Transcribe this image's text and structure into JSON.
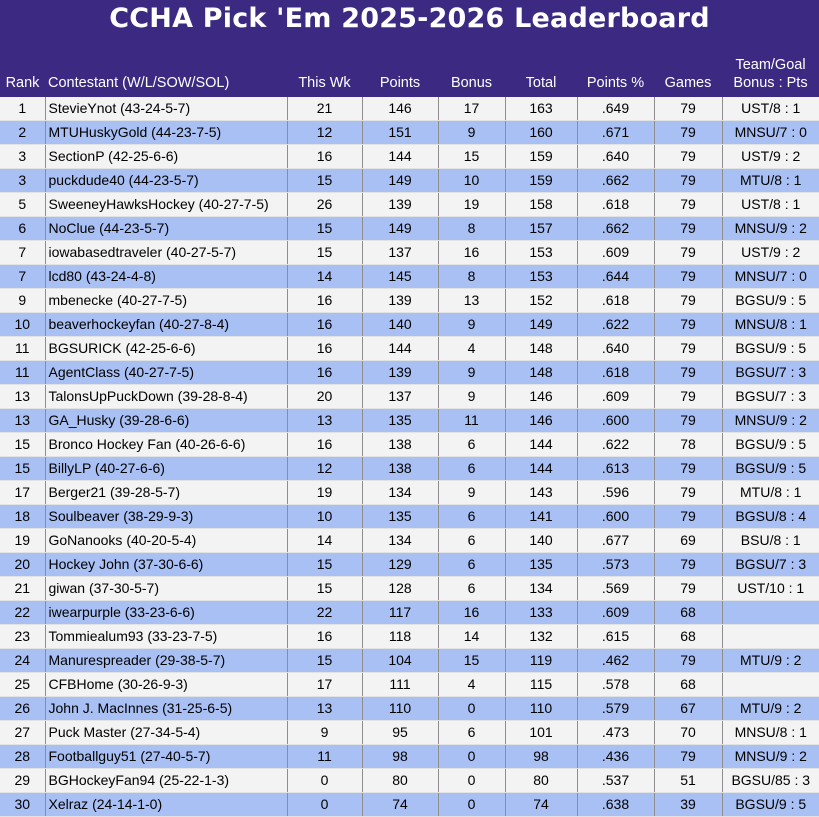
{
  "title": "CCHA Pick 'Em 2025-2026 Leaderboard",
  "headers": {
    "rank": "Rank",
    "contestant": "Contestant (W/L/SOW/SOL)",
    "this_wk": "This Wk",
    "points": "Points",
    "bonus": "Bonus",
    "total": "Total",
    "points_pct": "Points %",
    "games": "Games",
    "team_goal_1": "Team/Goal",
    "team_goal_2": "Bonus : Pts"
  },
  "rows": [
    {
      "rank": "1",
      "contestant": "StevieYnot (43-24-5-7)",
      "this_wk": "21",
      "points": "146",
      "bonus": "17",
      "total": "163",
      "pct": ".649",
      "games": "79",
      "tg": "UST/8 : 1"
    },
    {
      "rank": "2",
      "contestant": "MTUHuskyGold (44-23-7-5)",
      "this_wk": "12",
      "points": "151",
      "bonus": "9",
      "total": "160",
      "pct": ".671",
      "games": "79",
      "tg": "MNSU/7 : 0"
    },
    {
      "rank": "3",
      "contestant": "SectionP (42-25-6-6)",
      "this_wk": "16",
      "points": "144",
      "bonus": "15",
      "total": "159",
      "pct": ".640",
      "games": "79",
      "tg": "UST/9 : 2"
    },
    {
      "rank": "3",
      "contestant": "puckdude40 (44-23-5-7)",
      "this_wk": "15",
      "points": "149",
      "bonus": "10",
      "total": "159",
      "pct": ".662",
      "games": "79",
      "tg": "MTU/8 : 1"
    },
    {
      "rank": "5",
      "contestant": "SweeneyHawksHockey (40-27-7-5)",
      "this_wk": "26",
      "points": "139",
      "bonus": "19",
      "total": "158",
      "pct": ".618",
      "games": "79",
      "tg": "UST/8 : 1"
    },
    {
      "rank": "6",
      "contestant": "NoClue (44-23-5-7)",
      "this_wk": "15",
      "points": "149",
      "bonus": "8",
      "total": "157",
      "pct": ".662",
      "games": "79",
      "tg": "MNSU/9 : 2"
    },
    {
      "rank": "7",
      "contestant": "iowabasedtraveler (40-27-5-7)",
      "this_wk": "15",
      "points": "137",
      "bonus": "16",
      "total": "153",
      "pct": ".609",
      "games": "79",
      "tg": "UST/9 : 2"
    },
    {
      "rank": "7",
      "contestant": "lcd80 (43-24-4-8)",
      "this_wk": "14",
      "points": "145",
      "bonus": "8",
      "total": "153",
      "pct": ".644",
      "games": "79",
      "tg": "MNSU/7 : 0"
    },
    {
      "rank": "9",
      "contestant": "mbenecke (40-27-7-5)",
      "this_wk": "16",
      "points": "139",
      "bonus": "13",
      "total": "152",
      "pct": ".618",
      "games": "79",
      "tg": "BGSU/9 : 5"
    },
    {
      "rank": "10",
      "contestant": "beaverhockeyfan (40-27-8-4)",
      "this_wk": "16",
      "points": "140",
      "bonus": "9",
      "total": "149",
      "pct": ".622",
      "games": "79",
      "tg": "MNSU/8 : 1"
    },
    {
      "rank": "11",
      "contestant": "BGSURICK (42-25-6-6)",
      "this_wk": "16",
      "points": "144",
      "bonus": "4",
      "total": "148",
      "pct": ".640",
      "games": "79",
      "tg": "BGSU/9 : 5"
    },
    {
      "rank": "11",
      "contestant": "AgentClass (40-27-7-5)",
      "this_wk": "16",
      "points": "139",
      "bonus": "9",
      "total": "148",
      "pct": ".618",
      "games": "79",
      "tg": "BGSU/7 : 3"
    },
    {
      "rank": "13",
      "contestant": "TalonsUpPuckDown (39-28-8-4)",
      "this_wk": "20",
      "points": "137",
      "bonus": "9",
      "total": "146",
      "pct": ".609",
      "games": "79",
      "tg": "BGSU/7 : 3"
    },
    {
      "rank": "13",
      "contestant": "GA_Husky (39-28-6-6)",
      "this_wk": "13",
      "points": "135",
      "bonus": "11",
      "total": "146",
      "pct": ".600",
      "games": "79",
      "tg": "MNSU/9 : 2"
    },
    {
      "rank": "15",
      "contestant": "Bronco Hockey Fan (40-26-6-6)",
      "this_wk": "16",
      "points": "138",
      "bonus": "6",
      "total": "144",
      "pct": ".622",
      "games": "78",
      "tg": "BGSU/9 : 5"
    },
    {
      "rank": "15",
      "contestant": "BillyLP (40-27-6-6)",
      "this_wk": "12",
      "points": "138",
      "bonus": "6",
      "total": "144",
      "pct": ".613",
      "games": "79",
      "tg": "BGSU/9 : 5"
    },
    {
      "rank": "17",
      "contestant": "Berger21 (39-28-5-7)",
      "this_wk": "19",
      "points": "134",
      "bonus": "9",
      "total": "143",
      "pct": ".596",
      "games": "79",
      "tg": "MTU/8 : 1"
    },
    {
      "rank": "18",
      "contestant": "Soulbeaver (38-29-9-3)",
      "this_wk": "10",
      "points": "135",
      "bonus": "6",
      "total": "141",
      "pct": ".600",
      "games": "79",
      "tg": "BGSU/8 : 4"
    },
    {
      "rank": "19",
      "contestant": "GoNanooks (40-20-5-4)",
      "this_wk": "14",
      "points": "134",
      "bonus": "6",
      "total": "140",
      "pct": ".677",
      "games": "69",
      "tg": "BSU/8 : 1"
    },
    {
      "rank": "20",
      "contestant": "Hockey John (37-30-6-6)",
      "this_wk": "15",
      "points": "129",
      "bonus": "6",
      "total": "135",
      "pct": ".573",
      "games": "79",
      "tg": "BGSU/7 : 3"
    },
    {
      "rank": "21",
      "contestant": "giwan (37-30-5-7)",
      "this_wk": "15",
      "points": "128",
      "bonus": "6",
      "total": "134",
      "pct": ".569",
      "games": "79",
      "tg": "UST/10 : 1"
    },
    {
      "rank": "22",
      "contestant": "iwearpurple (33-23-6-6)",
      "this_wk": "22",
      "points": "117",
      "bonus": "16",
      "total": "133",
      "pct": ".609",
      "games": "68",
      "tg": ""
    },
    {
      "rank": "23",
      "contestant": "Tommiealum93 (33-23-7-5)",
      "this_wk": "16",
      "points": "118",
      "bonus": "14",
      "total": "132",
      "pct": ".615",
      "games": "68",
      "tg": ""
    },
    {
      "rank": "24",
      "contestant": "Manurespreader (29-38-5-7)",
      "this_wk": "15",
      "points": "104",
      "bonus": "15",
      "total": "119",
      "pct": ".462",
      "games": "79",
      "tg": "MTU/9 : 2"
    },
    {
      "rank": "25",
      "contestant": "CFBHome (30-26-9-3)",
      "this_wk": "17",
      "points": "111",
      "bonus": "4",
      "total": "115",
      "pct": ".578",
      "games": "68",
      "tg": ""
    },
    {
      "rank": "26",
      "contestant": "John J. MacInnes (31-25-6-5)",
      "this_wk": "13",
      "points": "110",
      "bonus": "0",
      "total": "110",
      "pct": ".579",
      "games": "67",
      "tg": "MTU/9 : 2"
    },
    {
      "rank": "27",
      "contestant": "Puck Master (27-34-5-4)",
      "this_wk": "9",
      "points": "95",
      "bonus": "6",
      "total": "101",
      "pct": ".473",
      "games": "70",
      "tg": "MNSU/8 : 1"
    },
    {
      "rank": "28",
      "contestant": "Footballguy51 (27-40-5-7)",
      "this_wk": "11",
      "points": "98",
      "bonus": "0",
      "total": "98",
      "pct": ".436",
      "games": "79",
      "tg": "MNSU/9 : 2"
    },
    {
      "rank": "29",
      "contestant": "BGHockeyFan94 (25-22-1-3)",
      "this_wk": "0",
      "points": "80",
      "bonus": "0",
      "total": "80",
      "pct": ".537",
      "games": "51",
      "tg": "BGSU/85 : 3"
    },
    {
      "rank": "30",
      "contestant": "Xelraz (24-14-1-0)",
      "this_wk": "0",
      "points": "74",
      "bonus": "0",
      "total": "74",
      "pct": ".638",
      "games": "39",
      "tg": "BGSU/9 : 5"
    }
  ],
  "colors": {
    "header_bg": "#3c2a82",
    "header_text": "#ffffff",
    "row_odd": "#f3f3f3",
    "row_even": "#a8c0f3"
  }
}
